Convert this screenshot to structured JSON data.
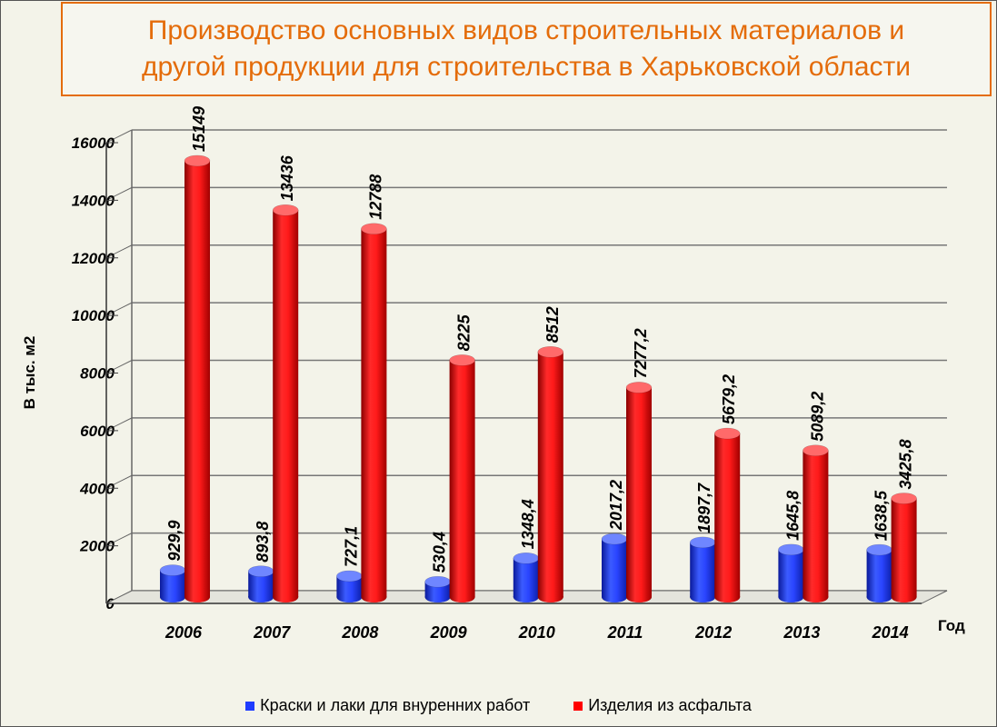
{
  "title": {
    "line1": "Производство основных видов строительных материалов и",
    "line2": "другой продукции для строительства в Харьковской области"
  },
  "colors": {
    "title": "#e46c0a",
    "series_blue": "#1f3cff",
    "series_red": "#ff0000",
    "background": "#f3f3e9"
  },
  "chart_data": {
    "type": "bar",
    "title": "Производство основных видов строительных материалов и другой продукции для строительства в Харьковской области",
    "categories": [
      "2006",
      "2007",
      "2008",
      "2009",
      "2010",
      "2011",
      "2012",
      "2013",
      "2014"
    ],
    "series": [
      {
        "name": "Краски и лаки для внуренних работ",
        "values": [
          929.9,
          893.8,
          727.1,
          530.4,
          1348.4,
          2017.2,
          1897.7,
          1645.8,
          1638.5
        ],
        "labels": [
          "929,9",
          "893,8",
          "727,1",
          "530,4",
          "1348,4",
          "2017,2",
          "1897,7",
          "1645,8",
          "1638,5"
        ],
        "color": "#1f3cff"
      },
      {
        "name": "Изделия из асфальта",
        "values": [
          15149,
          13436,
          12788,
          8225,
          8512,
          7277.2,
          5679.2,
          5089.2,
          3425.8
        ],
        "labels": [
          "15149",
          "13436",
          "12788",
          "8225",
          "8512",
          "7277,2",
          "5679,2",
          "5089,2",
          "3425,8"
        ],
        "color": "#ff0000"
      }
    ],
    "ylabel": "В тыс. м2",
    "xlabel": "Год",
    "ylim": [
      0,
      16000
    ],
    "yticks": [
      "0",
      "2000",
      "4000",
      "6000",
      "8000",
      "10000",
      "12000",
      "14000",
      "16000"
    ],
    "grid": true,
    "legend": "bottom"
  }
}
